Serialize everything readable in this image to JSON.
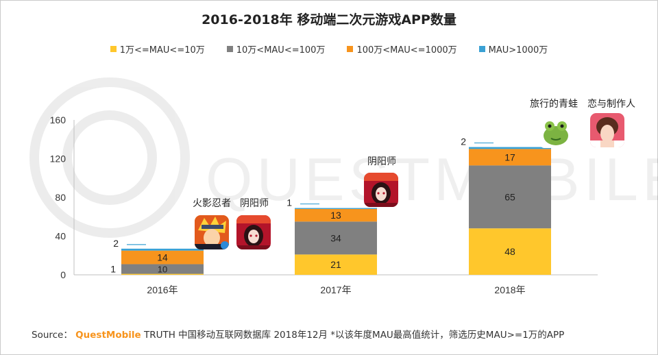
{
  "title": "2016-2018年 移动端二次元游戏APP数量",
  "colors": {
    "tier1": "#ffc72c",
    "tier2": "#808080",
    "tier3": "#f7941d",
    "tier4": "#3aa1d4",
    "brand": "#f7941d"
  },
  "watermark": "QUESTMOBILE",
  "chart_data": {
    "type": "bar",
    "stacked": true,
    "categories": [
      "2016年",
      "2017年",
      "2018年"
    ],
    "series": [
      {
        "name": "1万<=MAU<=10万",
        "values": [
          1,
          21,
          48
        ]
      },
      {
        "name": "10万<MAU<=100万",
        "values": [
          10,
          34,
          65
        ]
      },
      {
        "name": "100万<MAU<=1000万",
        "values": [
          14,
          13,
          17
        ]
      },
      {
        "name": "MAU>1000万",
        "values": [
          2,
          1,
          2
        ]
      }
    ],
    "yticks": [
      0,
      40,
      80,
      120,
      160
    ],
    "ylim": [
      0,
      160
    ],
    "legend_position": "top",
    "grid": false,
    "app_callouts": [
      {
        "year": "2016年",
        "apps": [
          "火影忍者",
          "阴阳师"
        ]
      },
      {
        "year": "2017年",
        "apps": [
          "阴阳师"
        ]
      },
      {
        "year": "2018年",
        "apps": [
          "旅行的青蛙",
          "恋与制作人"
        ]
      }
    ]
  },
  "footer": {
    "source_label": "Source：",
    "brand": "QuestMobile",
    "rest": " TRUTH 中国移动互联网数据库 2018年12月  *以该年度MAU最高值统计，筛选历史MAU>=1万的APP"
  }
}
